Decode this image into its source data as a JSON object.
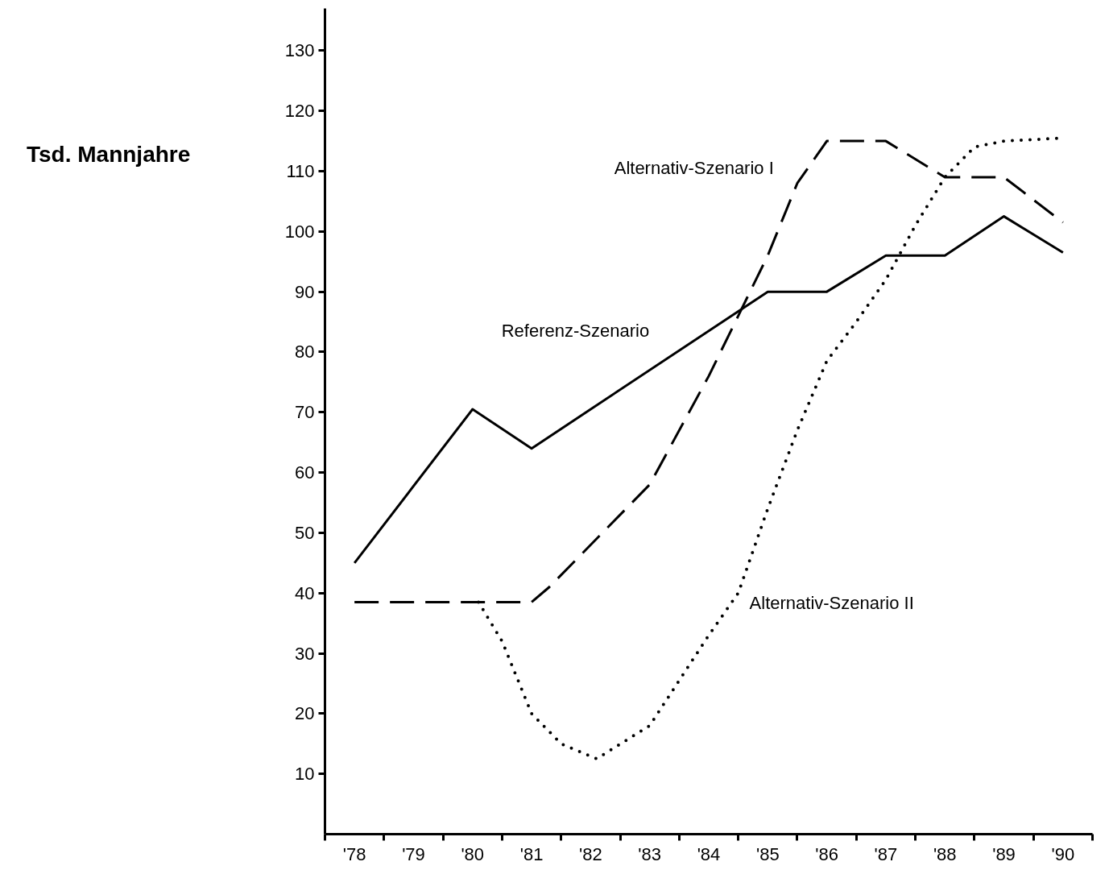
{
  "chart_data": {
    "type": "line",
    "annotations": [
      "Tsd. Mannjahre"
    ],
    "xlim": [
      1977.5,
      1990.5
    ],
    "ylim": [
      0,
      137
    ],
    "xticks": [
      {
        "value": 1977.5,
        "label": null
      },
      {
        "value": 1978,
        "label": "'78"
      },
      {
        "value": 1978.5,
        "label": null
      },
      {
        "value": 1979,
        "label": "'79"
      },
      {
        "value": 1979.5,
        "label": null
      },
      {
        "value": 1980,
        "label": "'80"
      },
      {
        "value": 1980.5,
        "label": null
      },
      {
        "value": 1981,
        "label": "'81"
      },
      {
        "value": 1981.5,
        "label": null
      },
      {
        "value": 1982,
        "label": "'82"
      },
      {
        "value": 1982.5,
        "label": null
      },
      {
        "value": 1983,
        "label": "'83"
      },
      {
        "value": 1983.5,
        "label": null
      },
      {
        "value": 1984,
        "label": "'84"
      },
      {
        "value": 1984.5,
        "label": null
      },
      {
        "value": 1985,
        "label": "'85"
      },
      {
        "value": 1985.5,
        "label": null
      },
      {
        "value": 1986,
        "label": "'86"
      },
      {
        "value": 1986.5,
        "label": null
      },
      {
        "value": 1987,
        "label": "'87"
      },
      {
        "value": 1987.5,
        "label": null
      },
      {
        "value": 1988,
        "label": "'88"
      },
      {
        "value": 1988.5,
        "label": null
      },
      {
        "value": 1989,
        "label": "'89"
      },
      {
        "value": 1989.5,
        "label": null
      },
      {
        "value": 1990,
        "label": "'90"
      },
      {
        "value": 1990.5,
        "label": null
      }
    ],
    "yticks": [
      10,
      20,
      30,
      40,
      50,
      60,
      70,
      80,
      90,
      100,
      110,
      120,
      130
    ],
    "grid": false,
    "marker": "none",
    "series": [
      {
        "name": "Referenz-Szenario",
        "color": "#000000",
        "line_style": "solid",
        "x": [
          1978,
          1980,
          1981,
          1985,
          1986,
          1987,
          1988,
          1989,
          1990
        ],
        "values": [
          45,
          70.5,
          64,
          90,
          90,
          96,
          96,
          102.5,
          96.5
        ]
      },
      {
        "name": "Alternativ-Szenario I",
        "color": "#000000",
        "line_style": "dashed",
        "x": [
          1978,
          1980,
          1981,
          1981.3,
          1983,
          1984,
          1984.5,
          1985,
          1985.5,
          1986,
          1987,
          1988,
          1989,
          1990
        ],
        "values": [
          38.5,
          38.5,
          38.5,
          41,
          58,
          76,
          86,
          96,
          108,
          115,
          115,
          109,
          109,
          101.5
        ]
      },
      {
        "name": "Alternativ-Szenario II",
        "color": "#000000",
        "line_style": "dotted",
        "x": [
          1980.1,
          1980.5,
          1981,
          1981.5,
          1982.1,
          1983,
          1984,
          1984.5,
          1985,
          1985.5,
          1986,
          1986.5,
          1987,
          1987.5,
          1988,
          1988.5,
          1989,
          1990
        ],
        "values": [
          38.5,
          32,
          20,
          15,
          12.5,
          18,
          33,
          40,
          54,
          67,
          78.5,
          85,
          92,
          101,
          109,
          114,
          115,
          115.5
        ]
      }
    ]
  }
}
